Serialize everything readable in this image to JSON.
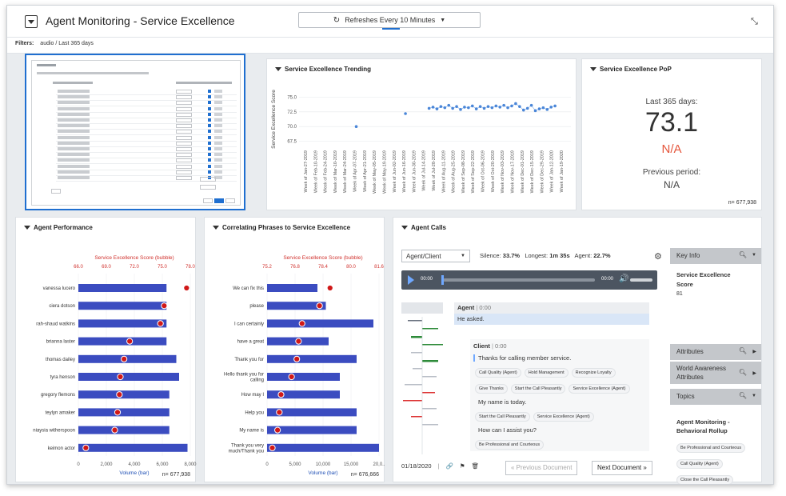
{
  "header": {
    "title": "Agent Monitoring - Service Excellence",
    "refresh_label": "Refreshes Every 10 Minutes",
    "filters_label": "Filters:",
    "filters_value": "audio / Last 365 days"
  },
  "trending": {
    "title": "Service Excellence Trending",
    "ylabel": "Service Excellence Score",
    "yticks": [
      "75.0",
      "72.5",
      "70.0",
      "67.5"
    ]
  },
  "pop": {
    "title": "Service Excellence PoP",
    "period_label": "Last 365 days:",
    "value": "73.1",
    "change": "N/A",
    "prev_label": "Previous period:",
    "prev_value": "N/A",
    "n": "n= 677,938",
    "change_color": "#e5553b"
  },
  "performance": {
    "title": "Agent Performance",
    "top_axis_label": "Service Excellence Score (bubble)",
    "top_ticks": [
      "66.0",
      "69.0",
      "72.0",
      "75.0",
      "78.0"
    ],
    "bottom_axis_label": "Volume (bar)",
    "bottom_ticks": [
      "0",
      "2,000",
      "4,000",
      "6,000",
      "8,000"
    ],
    "n": "n= 677,938"
  },
  "phrases": {
    "title": "Correlating Phrases to Service Excellence",
    "top_axis_label": "Service Excellence Score (bubble)",
    "top_ticks": [
      "75.2",
      "76.8",
      "78.4",
      "80.0",
      "81.6"
    ],
    "bottom_axis_label": "Volume (bar)",
    "bottom_ticks": [
      "0",
      "5,000",
      "10,000",
      "15,000",
      "20,0.."
    ],
    "n": "n= 676,666"
  },
  "calls": {
    "title": "Agent Calls",
    "speaker_select": "Agent/Client",
    "silence_label": "Silence:",
    "silence_value": "33.7%",
    "longest_label": "Longest:",
    "longest_value": "1m 35s",
    "agent_label": "Agent:",
    "agent_value": "22.7%",
    "time_start": "00:00",
    "time_end": "00:00",
    "agent_name": "Agent",
    "agent_time": "0:00",
    "agent_text": "He asked.",
    "client_name": "Client",
    "client_time": "0:00",
    "line1": "Thanks for calling member service.",
    "chips1": [
      "Call Quality (Agent)",
      "Hold Management",
      "Recognize Loyalty",
      "Give Thanks",
      "Start the Call Pleasantly",
      "Service Excellence (Agent)"
    ],
    "line2": "My name is today.",
    "chips2": [
      "Start the Call Pleasantly",
      "Service Excellence (Agent)"
    ],
    "line3": "How can I assist you?",
    "chips3": [
      "Be Professional and Courteous"
    ],
    "date": "01/18/2020",
    "prev_doc": "« Previous Document",
    "next_doc": "Next Document »",
    "key_info": "Key Info",
    "key_metric": "Service Excellence Score",
    "key_value": "81",
    "attributes": "Attributes",
    "world": "World Awareness Attributes",
    "topics": "Topics",
    "topic_group": "Agent Monitoring - Behavioral Rollup",
    "topic_chips": [
      "Be Professional and Courteous",
      "Call Quality (Agent)",
      "Close the Call Pleasantly"
    ]
  },
  "chart_data": [
    {
      "type": "scatter",
      "title": "Service Excellence Trending",
      "ylabel": "Service Excellence Score",
      "ylim": [
        66.5,
        76
      ],
      "x": [
        "Week of Jan-27-2019",
        "Week of Feb-10-2019",
        "Week of Feb-24-2019",
        "Week of Mar-10-2019",
        "Week of Mar-24-2019",
        "Week of Apr-07-2019",
        "Week of Apr-21-2019",
        "Week of May-05-2019",
        "Week of May-19-2019",
        "Week of Jun-02-2019",
        "Week of Jun-16-2019",
        "Week of Jun-30-2019",
        "Week of Jul-14-2019",
        "Week of Jul-28-2019",
        "Week of Aug-11-2019",
        "Week of Aug-25-2019",
        "Week of Sep-08-2019",
        "Week of Sep-22-2019",
        "Week of Oct-06-2019",
        "Week of Oct-20-2019",
        "Week of Nov-03-2019",
        "Week of Nov-17-2019",
        "Week of Dec-01-2019",
        "Week of Dec-15-2019",
        "Week of Dec-29-2019",
        "Week of Jan-12-2020",
        "Week of Jan-19-2020"
      ],
      "points": [
        {
          "x": 5.0,
          "y": 70.0
        },
        {
          "x": 10.0,
          "y": 72.2
        },
        {
          "x": 12.4,
          "y": 73.1
        },
        {
          "x": 12.8,
          "y": 73.3
        },
        {
          "x": 13.2,
          "y": 73.0
        },
        {
          "x": 13.6,
          "y": 73.4
        },
        {
          "x": 14.0,
          "y": 73.2
        },
        {
          "x": 14.4,
          "y": 73.6
        },
        {
          "x": 14.8,
          "y": 73.1
        },
        {
          "x": 15.2,
          "y": 73.4
        },
        {
          "x": 15.6,
          "y": 72.9
        },
        {
          "x": 16.0,
          "y": 73.3
        },
        {
          "x": 16.4,
          "y": 73.2
        },
        {
          "x": 16.8,
          "y": 73.5
        },
        {
          "x": 17.2,
          "y": 73.0
        },
        {
          "x": 17.6,
          "y": 73.4
        },
        {
          "x": 18.0,
          "y": 73.1
        },
        {
          "x": 18.4,
          "y": 73.4
        },
        {
          "x": 18.8,
          "y": 73.2
        },
        {
          "x": 19.2,
          "y": 73.5
        },
        {
          "x": 19.6,
          "y": 73.3
        },
        {
          "x": 20.0,
          "y": 73.6
        },
        {
          "x": 20.4,
          "y": 73.2
        },
        {
          "x": 20.8,
          "y": 73.5
        },
        {
          "x": 21.2,
          "y": 73.9
        },
        {
          "x": 21.6,
          "y": 73.4
        },
        {
          "x": 22.0,
          "y": 72.8
        },
        {
          "x": 22.4,
          "y": 73.1
        },
        {
          "x": 22.8,
          "y": 73.6
        },
        {
          "x": 23.2,
          "y": 72.7
        },
        {
          "x": 23.6,
          "y": 73.0
        },
        {
          "x": 24.0,
          "y": 73.2
        },
        {
          "x": 24.4,
          "y": 72.9
        },
        {
          "x": 24.8,
          "y": 73.3
        },
        {
          "x": 25.2,
          "y": 73.5
        }
      ]
    },
    {
      "type": "bar",
      "title": "Agent Performance",
      "categories": [
        "vanessa lucero",
        "ciera dotson",
        "rah-shaud watkins",
        "brianna laster",
        "thomas dailey",
        "tyra henson",
        "gregory flemons",
        "teylyn amaker",
        "niaysia witherspoon",
        "keimon actor"
      ],
      "series": [
        {
          "values": [
            6300,
            6300,
            6300,
            6300,
            7000,
            7200,
            6500,
            6500,
            6500,
            7800
          ]
        },
        {
          "values": [
            77.6,
            75.2,
            74.8,
            71.5,
            70.9,
            70.5,
            70.4,
            70.2,
            69.9,
            66.8
          ]
        }
      ],
      "xlabel": "Volume (bar)",
      "xlim": [
        0,
        8000
      ],
      "bubble_label": "Service Excellence Score (bubble)",
      "bubble_lim": [
        66,
        78
      ]
    },
    {
      "type": "bar",
      "title": "Correlating Phrases to Service Excellence",
      "categories": [
        "We can fix this",
        "please",
        "I can certainly",
        "have a great",
        "Thank you for",
        "Hello thank you for calling",
        "How may I",
        "Help you",
        "My name is",
        "Thank you very much/Thank you"
      ],
      "series": [
        {
          "values": [
            9000,
            10500,
            19000,
            11000,
            16000,
            13000,
            13000,
            16000,
            16000,
            20000
          ]
        },
        {
          "values": [
            78.8,
            78.2,
            77.2,
            77.0,
            76.9,
            76.6,
            76.0,
            75.9,
            75.8,
            75.5
          ]
        }
      ],
      "xlabel": "Volume (bar)",
      "xlim": [
        0,
        20000
      ],
      "bubble_label": "Service Excellence Score (bubble)",
      "bubble_lim": [
        75.2,
        81.6
      ]
    }
  ]
}
